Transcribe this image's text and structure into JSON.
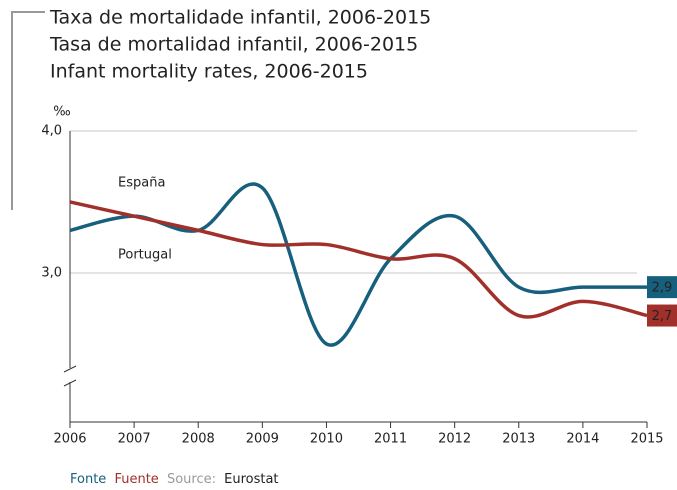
{
  "chart_data": {
    "type": "line",
    "titles": [
      "Taxa de mortalidade infantil, 2006-2015",
      "Tasa de mortalidad infantil, 2006-2015",
      "Infant mortality rates, 2006-2015"
    ],
    "title_colors": [
      "#17607d",
      "#a2302a",
      "#9a9a9a"
    ],
    "y_label": "‰",
    "categories": [
      "2006",
      "2007",
      "2008",
      "2009",
      "2010",
      "2011",
      "2012",
      "2013",
      "2014",
      "2015"
    ],
    "series": [
      {
        "name": "Portugal",
        "color": "#17607d",
        "values": [
          3.3,
          3.4,
          3.3,
          3.6,
          2.5,
          3.1,
          3.4,
          2.9,
          2.9,
          2.9
        ],
        "value_labels": [
          null,
          null,
          null,
          null,
          null,
          null,
          null,
          null,
          null,
          "2,9"
        ]
      },
      {
        "name": "España",
        "color": "#a2302a",
        "values": [
          3.5,
          3.4,
          3.3,
          3.2,
          3.2,
          3.1,
          3.1,
          2.7,
          2.8,
          2.7
        ],
        "value_labels": [
          null,
          null,
          null,
          null,
          null,
          null,
          null,
          null,
          null,
          "2,7"
        ]
      }
    ],
    "ylim": [
      1.95,
      4.0
    ],
    "yticks": [
      {
        "value": 3.0,
        "label": "3,0"
      },
      {
        "value": 4.0,
        "label": "4,0"
      }
    ],
    "grid": true,
    "source": {
      "pt": "Fonte",
      "es": "Fuente",
      "en": "Source:",
      "text": "Eurostat"
    }
  }
}
